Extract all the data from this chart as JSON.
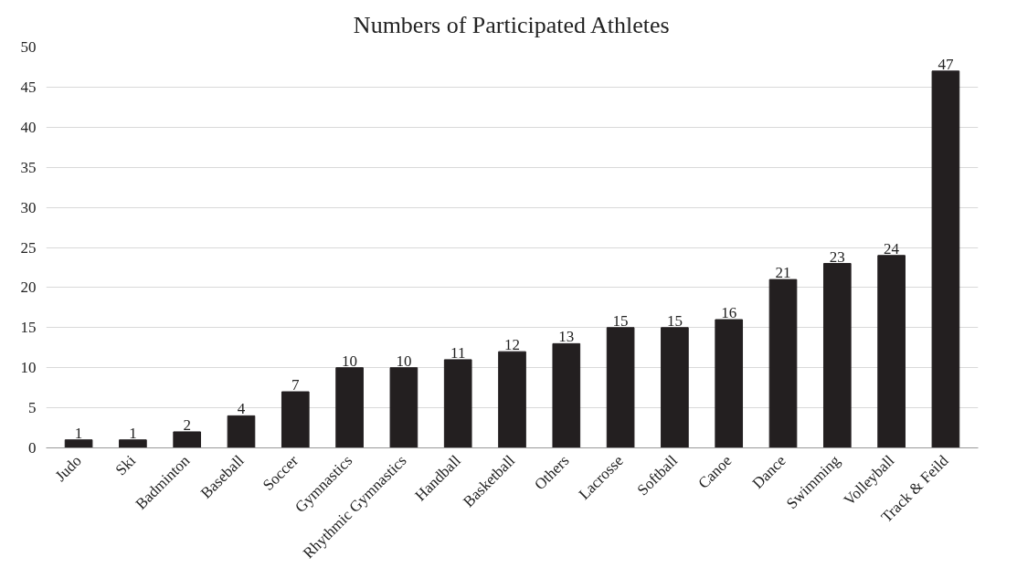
{
  "chart_data": {
    "type": "bar",
    "title": "Numbers of Participated Athletes",
    "categories": [
      "Judo",
      "Ski",
      "Badminton",
      "Baseball",
      "Soccer",
      "Gymnastics",
      "Rhythmic Gymnastics",
      "Handball",
      "Basketball",
      "Others",
      "Lacrosse",
      "Softball",
      "Canoe",
      "Dance",
      "Swimming",
      "Volleyball",
      "Track & Feild"
    ],
    "values": [
      1,
      1,
      2,
      4,
      7,
      10,
      10,
      11,
      12,
      13,
      15,
      15,
      16,
      21,
      23,
      24,
      47
    ],
    "color": "#231f20",
    "ylim": [
      0,
      50
    ],
    "yticks": [
      0,
      5,
      10,
      15,
      20,
      25,
      30,
      35,
      40,
      45,
      50
    ],
    "grid": "y",
    "data_labels": true
  }
}
